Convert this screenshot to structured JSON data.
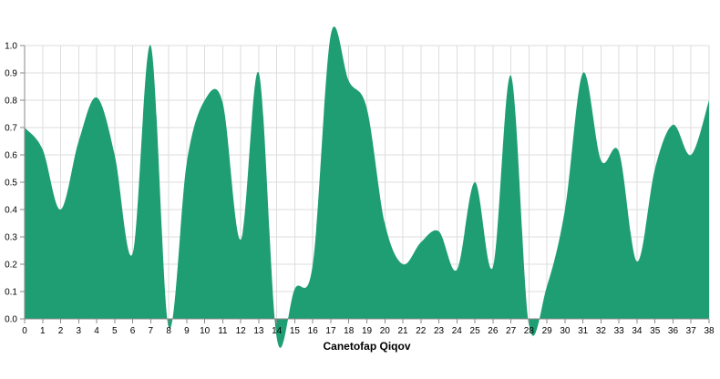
{
  "chart_data": {
    "type": "area",
    "title": "",
    "xlabel": "Canetofap Qiqov",
    "ylabel": "",
    "xlim": [
      0,
      38
    ],
    "ylim": [
      0,
      1.0
    ],
    "grid": true,
    "legend": "none",
    "color": "#1f9e74",
    "x_ticks": [
      0,
      1,
      2,
      3,
      4,
      5,
      6,
      7,
      8,
      9,
      10,
      11,
      12,
      13,
      14,
      15,
      16,
      17,
      18,
      19,
      20,
      21,
      22,
      23,
      24,
      25,
      26,
      27,
      28,
      29,
      30,
      31,
      32,
      33,
      34,
      35,
      36,
      37,
      38
    ],
    "y_ticks": [
      "0.0",
      "0.1",
      "0.2",
      "0.3",
      "0.4",
      "0.5",
      "0.6",
      "0.7",
      "0.8",
      "0.9",
      "1.0"
    ],
    "series": [
      {
        "x": [
          0,
          1,
          2,
          3,
          4,
          5,
          6,
          7,
          8,
          9,
          10,
          11,
          12,
          13,
          14,
          15,
          16,
          17,
          18,
          19,
          20,
          21,
          22,
          23,
          24,
          25,
          26,
          27,
          28,
          29,
          30,
          31,
          32,
          33,
          34,
          35,
          36,
          37,
          38
        ],
        "values": [
          0.7,
          0.62,
          0.4,
          0.65,
          0.81,
          0.6,
          0.24,
          1.0,
          -0.03,
          0.57,
          0.8,
          0.79,
          0.29,
          0.9,
          -0.07,
          0.11,
          0.2,
          1.04,
          0.87,
          0.77,
          0.35,
          0.2,
          0.28,
          0.32,
          0.18,
          0.5,
          0.19,
          0.89,
          -0.02,
          0.12,
          0.4,
          0.9,
          0.58,
          0.61,
          0.21,
          0.55,
          0.71,
          0.6,
          0.8
        ]
      }
    ]
  }
}
